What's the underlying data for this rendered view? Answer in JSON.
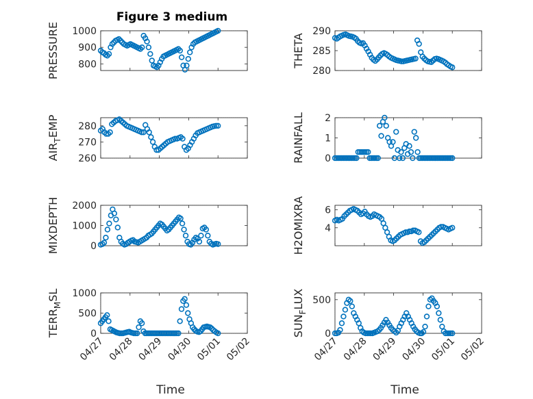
{
  "figure": {
    "title": "Figure 3 medium",
    "marker_color": "#0072BD",
    "x_ticks": [
      {
        "t": 0,
        "label": "04/27"
      },
      {
        "t": 1,
        "label": "04/28"
      },
      {
        "t": 2,
        "label": "04/29"
      },
      {
        "t": 3,
        "label": "04/30"
      },
      {
        "t": 4,
        "label": "05/01"
      },
      {
        "t": 5,
        "label": "05/02"
      }
    ],
    "x_range": [
      "04/27",
      "05/02"
    ]
  },
  "chart_data": [
    {
      "type": "scatter",
      "ylabel": {
        "main": "PRESSURE",
        "sub": "",
        "tail": ""
      },
      "ylim": [
        760,
        1000
      ],
      "yticks": [
        800,
        900,
        1000
      ],
      "show_xticklabels": false,
      "show_xlabel": false,
      "x_start": "04/27",
      "x_end": "05/01 00:00",
      "y": [
        880,
        870,
        865,
        855,
        850,
        860,
        900,
        920,
        930,
        940,
        945,
        950,
        940,
        930,
        920,
        915,
        910,
        915,
        920,
        915,
        910,
        905,
        900,
        895,
        890,
        900,
        970,
        955,
        935,
        900,
        860,
        820,
        790,
        785,
        780,
        790,
        810,
        830,
        845,
        850,
        855,
        860,
        865,
        870,
        875,
        880,
        885,
        890,
        880,
        840,
        790,
        765,
        790,
        830,
        870,
        900,
        920,
        930,
        935,
        940,
        945,
        950,
        955,
        960,
        965,
        970,
        975,
        980,
        985,
        990,
        995,
        1000
      ]
    },
    {
      "type": "scatter",
      "ylabel": {
        "main": "THETA",
        "sub": "",
        "tail": ""
      },
      "ylim": [
        280,
        290
      ],
      "yticks": [
        280,
        285,
        290
      ],
      "show_xticklabels": false,
      "show_xlabel": false,
      "x_start": "04/27",
      "x_end": "05/01 00:00",
      "y": [
        288.2,
        288.0,
        288.3,
        288.6,
        288.8,
        289.0,
        289.1,
        288.9,
        288.7,
        288.6,
        288.5,
        288.3,
        288.0,
        287.4,
        287.0,
        286.8,
        286.9,
        286.3,
        285.5,
        284.8,
        284.0,
        283.2,
        282.7,
        282.4,
        282.8,
        283.3,
        283.8,
        284.2,
        284.4,
        284.2,
        283.9,
        283.5,
        283.2,
        283.0,
        282.8,
        282.6,
        282.5,
        282.4,
        282.3,
        282.3,
        282.4,
        282.5,
        282.6,
        282.7,
        282.8,
        282.9,
        283.0,
        287.6,
        286.7,
        284.6,
        283.5,
        283.0,
        282.6,
        282.3,
        282.2,
        282.1,
        282.5,
        282.9,
        283.0,
        282.9,
        282.7,
        282.5,
        282.3,
        282.0,
        281.6,
        281.3,
        281.0,
        280.8
      ]
    },
    {
      "type": "scatter",
      "ylabel": {
        "main": "AIR",
        "sub": "T",
        "tail": "EMP"
      },
      "ylim": [
        260,
        285
      ],
      "yticks": [
        260,
        270,
        280
      ],
      "show_xticklabels": false,
      "show_xlabel": false,
      "x_start": "04/27",
      "x_end": "05/01 00:00",
      "y": [
        277,
        278,
        276,
        275,
        275,
        276,
        281,
        282,
        283,
        283.5,
        284,
        283,
        282,
        281,
        280,
        279.5,
        279,
        278.5,
        278,
        277.5,
        277,
        276.5,
        276,
        276,
        280.5,
        278,
        276,
        273,
        270,
        267,
        265,
        265,
        266,
        267,
        268,
        269,
        270,
        270.5,
        271,
        271.5,
        272,
        272,
        272.5,
        273,
        272,
        267,
        265,
        266,
        268,
        270,
        272,
        274,
        275.5,
        276,
        276.5,
        277,
        277.5,
        278,
        278.5,
        279,
        279.5,
        279.8,
        280,
        280
      ]
    },
    {
      "type": "scatter",
      "ylabel": {
        "main": "RAINFALL",
        "sub": "",
        "tail": ""
      },
      "ylim": [
        0,
        2
      ],
      "yticks": [
        0,
        1,
        2
      ],
      "show_xticklabels": false,
      "show_xlabel": false,
      "x_start": "04/27",
      "x_end": "05/01 00:00",
      "y": [
        0,
        0,
        0,
        0,
        0,
        0,
        0,
        0,
        0,
        0,
        0,
        0,
        0,
        0,
        0.3,
        0.3,
        0.3,
        0.3,
        0.3,
        0.3,
        0.3,
        0,
        0,
        0,
        0,
        0,
        0,
        1.6,
        1.1,
        1.8,
        2.0,
        1.6,
        1.0,
        0.8,
        0.6,
        0.8,
        0,
        1.3,
        0.4,
        0,
        0.3,
        0,
        0.5,
        0.7,
        0.2,
        0.6,
        0.3,
        0,
        1.3,
        1.0,
        0.3,
        0,
        0,
        0,
        0,
        0,
        0,
        0,
        0,
        0,
        0,
        0,
        0,
        0,
        0,
        0,
        0,
        0,
        0,
        0,
        0,
        0
      ]
    },
    {
      "type": "scatter",
      "ylabel": {
        "main": "MIXDEPTH",
        "sub": "",
        "tail": ""
      },
      "ylim": [
        0,
        2000
      ],
      "yticks": [
        0,
        1000,
        2000
      ],
      "show_xticklabels": false,
      "show_xlabel": false,
      "x_start": "04/27",
      "x_end": "05/01 00:00",
      "y": [
        50,
        80,
        150,
        400,
        800,
        1100,
        1500,
        1800,
        1600,
        1300,
        900,
        400,
        200,
        100,
        50,
        80,
        150,
        200,
        250,
        280,
        200,
        180,
        150,
        200,
        250,
        300,
        350,
        400,
        500,
        550,
        600,
        700,
        800,
        900,
        1000,
        1100,
        1050,
        950,
        850,
        750,
        800,
        900,
        1000,
        1100,
        1200,
        1300,
        1400,
        1350,
        1100,
        800,
        500,
        200,
        80,
        50,
        150,
        300,
        400,
        350,
        200,
        500,
        850,
        900,
        800,
        500,
        200,
        100,
        50,
        80,
        100,
        80
      ]
    },
    {
      "type": "scatter",
      "ylabel": {
        "main": "H2OMIXRA",
        "sub": "",
        "tail": ""
      },
      "ylim": [
        2,
        6.5
      ],
      "yticks": [
        4,
        6
      ],
      "show_xticklabels": false,
      "show_xlabel": false,
      "x_start": "04/27",
      "x_end": "05/01 00:00",
      "y": [
        4.8,
        4.9,
        4.8,
        4.9,
        5.0,
        5.3,
        5.5,
        5.7,
        5.9,
        6.0,
        6.1,
        6.0,
        5.9,
        5.7,
        5.5,
        5.6,
        5.8,
        5.5,
        5.3,
        5.2,
        5.3,
        5.5,
        5.4,
        5.3,
        5.2,
        5.0,
        4.5,
        4.0,
        3.5,
        3.0,
        2.6,
        2.5,
        2.6,
        2.8,
        3.0,
        3.2,
        3.3,
        3.4,
        3.5,
        3.5,
        3.6,
        3.6,
        3.7,
        3.7,
        3.6,
        3.5,
        2.5,
        2.3,
        2.4,
        2.6,
        2.8,
        3.0,
        3.2,
        3.4,
        3.6,
        3.8,
        4.0,
        4.1,
        4.1,
        4.0,
        3.9,
        3.8,
        3.9,
        4.0
      ]
    },
    {
      "type": "scatter",
      "ylabel": {
        "main": "TERR",
        "sub": "M",
        "tail": "SL"
      },
      "ylim": [
        0,
        1000
      ],
      "yticks": [
        0,
        500,
        1000
      ],
      "show_xticklabels": true,
      "show_xlabel": true,
      "xlabel": "Time",
      "x_start": "04/27",
      "x_end": "05/01 00:00",
      "y": [
        250,
        300,
        350,
        400,
        450,
        300,
        100,
        80,
        60,
        40,
        20,
        10,
        0,
        0,
        0,
        10,
        20,
        30,
        40,
        20,
        10,
        0,
        0,
        0,
        150,
        300,
        250,
        50,
        0,
        0,
        0,
        0,
        0,
        0,
        0,
        0,
        0,
        0,
        0,
        0,
        0,
        0,
        0,
        0,
        0,
        0,
        0,
        0,
        0,
        0,
        300,
        600,
        800,
        850,
        700,
        500,
        350,
        250,
        150,
        100,
        60,
        40,
        30,
        50,
        100,
        150,
        160,
        170,
        160,
        150,
        120,
        80,
        50,
        20,
        0
      ]
    },
    {
      "type": "scatter",
      "ylabel": {
        "main": "SUN",
        "sub": "F",
        "tail": "LUX"
      },
      "ylim": [
        0,
        600
      ],
      "yticks": [
        0,
        500
      ],
      "show_xticklabels": true,
      "show_xlabel": true,
      "xlabel": "Time",
      "x_start": "04/27",
      "x_end": "05/01 00:00",
      "y": [
        0,
        0,
        10,
        50,
        150,
        250,
        350,
        450,
        500,
        480,
        400,
        300,
        250,
        200,
        150,
        80,
        30,
        10,
        0,
        0,
        0,
        0,
        0,
        10,
        20,
        30,
        50,
        80,
        120,
        160,
        200,
        160,
        120,
        80,
        50,
        30,
        10,
        40,
        100,
        150,
        200,
        250,
        300,
        250,
        200,
        150,
        100,
        60,
        30,
        10,
        0,
        0,
        20,
        100,
        250,
        400,
        500,
        520,
        480,
        450,
        400,
        300,
        200,
        100,
        30,
        0,
        0,
        0,
        0,
        0
      ]
    }
  ]
}
